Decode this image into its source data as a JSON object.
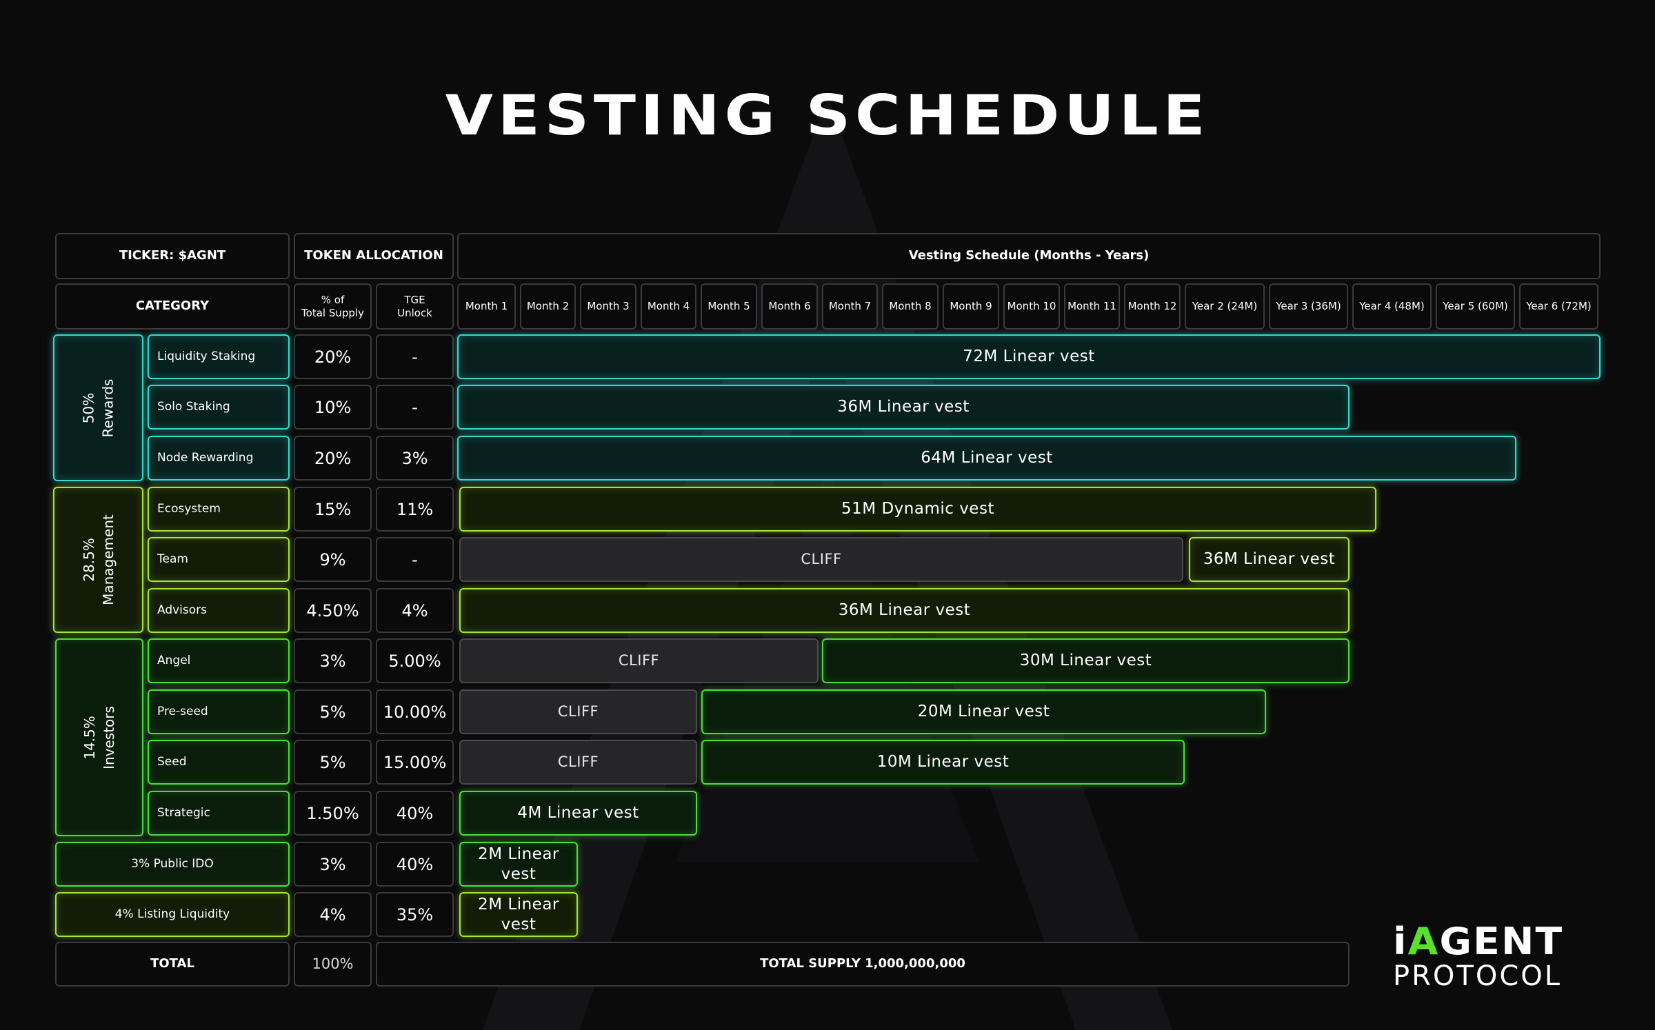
{
  "title": "VESTING SCHEDULE",
  "header": {
    "ticker": "TICKER: $AGNT",
    "token_allocation": "TOKEN ALLOCATION",
    "schedule": "Vesting Schedule (Months - Years)",
    "category": "CATEGORY",
    "pct_line1": "% of",
    "pct_line2": "Total Supply",
    "tge_line1": "TGE",
    "tge_line2": "Unlock"
  },
  "periods": [
    "Month 1",
    "Month 2",
    "Month 3",
    "Month 4",
    "Month 5",
    "Month 6",
    "Month 7",
    "Month 8",
    "Month 9",
    "Month 10",
    "Month 11",
    "Month 12",
    "Year 2 (24M)",
    "Year 3 (36M)",
    "Year 4 (48M)",
    "Year 5 (60M)",
    "Year 6 (72M)"
  ],
  "groups": [
    {
      "line1": "50%",
      "line2": "Rewards",
      "color": "#35d9cd"
    },
    {
      "line1": "28.5%",
      "line2": "Management",
      "color": "#a3e635"
    },
    {
      "line1": "14.5%",
      "line2": "Investors",
      "color": "#4ade3a"
    }
  ],
  "rows": [
    {
      "category": "Liquidity Staking",
      "supply": "20%",
      "tge": "-",
      "cliff": "",
      "vest": "72M Linear vest"
    },
    {
      "category": "Solo Staking",
      "supply": "10%",
      "tge": "-",
      "cliff": "",
      "vest": "36M Linear vest"
    },
    {
      "category": "Node Rewarding",
      "supply": "20%",
      "tge": "3%",
      "cliff": "",
      "vest": "64M Linear vest"
    },
    {
      "category": "Ecosystem",
      "supply": "15%",
      "tge": "11%",
      "cliff": "",
      "vest": "51M Dynamic vest"
    },
    {
      "category": "Team",
      "supply": "9%",
      "tge": "-",
      "cliff": "CLIFF",
      "vest": "36M Linear vest"
    },
    {
      "category": "Advisors",
      "supply": "4.50%",
      "tge": "4%",
      "cliff": "",
      "vest": "36M Linear vest"
    },
    {
      "category": "Angel",
      "supply": "3%",
      "tge": "5.00%",
      "cliff": "CLIFF",
      "vest": "30M Linear vest"
    },
    {
      "category": "Pre-seed",
      "supply": "5%",
      "tge": "10.00%",
      "cliff": "CLIFF",
      "vest": "20M Linear vest"
    },
    {
      "category": "Seed",
      "supply": "5%",
      "tge": "15.00%",
      "cliff": "CLIFF",
      "vest": "10M Linear vest"
    },
    {
      "category": "Strategic",
      "supply": "1.50%",
      "tge": "40%",
      "cliff": "",
      "vest": "4M Linear vest"
    },
    {
      "category": "3% Public IDO",
      "supply": "3%",
      "tge": "40%",
      "cliff": "",
      "vest": "2M Linear vest"
    },
    {
      "category": "4% Listing Liquidity",
      "supply": "4%",
      "tge": "35%",
      "cliff": "",
      "vest": "2M Linear vest"
    }
  ],
  "total": {
    "label": "TOTAL",
    "supply": "100%",
    "summary": "TOTAL SUPPLY 1,000,000,000"
  },
  "logo": {
    "top_prefix": "i",
    "top_a": "A",
    "top_rest": "GENT",
    "bottom": "PROTOCOL"
  },
  "colors": {
    "cyan": "#35d9cd",
    "lime": "#a3e635",
    "green": "#4ade3a",
    "cliff": "#262628",
    "background": "#0b0b0c"
  }
}
